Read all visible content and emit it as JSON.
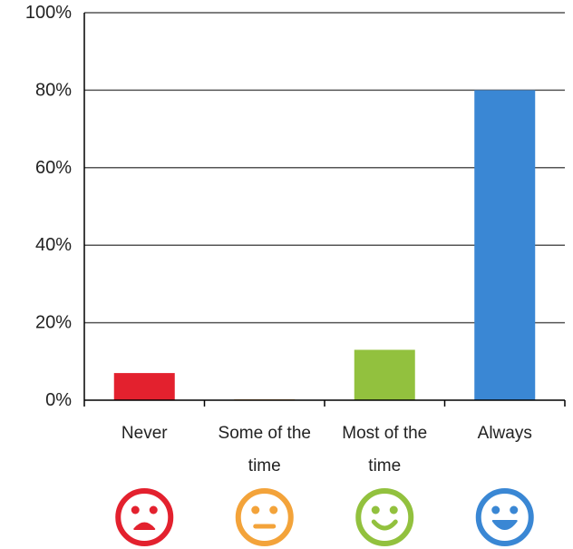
{
  "chart_data": {
    "type": "bar",
    "categories": [
      "Never",
      "Some of the time",
      "Most of the time",
      "Always"
    ],
    "category_lines": [
      [
        "Never"
      ],
      [
        "Some of the",
        "time"
      ],
      [
        "Most of the",
        "time"
      ],
      [
        "Always"
      ]
    ],
    "values": [
      7,
      0.2,
      13,
      80
    ],
    "colors": [
      "#e3212e",
      "#f3a33a",
      "#92c13e",
      "#3a87d4"
    ],
    "icons": [
      "sad-face-icon",
      "neutral-face-icon",
      "smile-face-icon",
      "grin-face-icon"
    ],
    "yticks": [
      "0%",
      "20%",
      "40%",
      "60%",
      "80%",
      "100%"
    ],
    "ylim": [
      0,
      100
    ],
    "grid": true,
    "title": "",
    "xlabel": "",
    "ylabel": ""
  }
}
